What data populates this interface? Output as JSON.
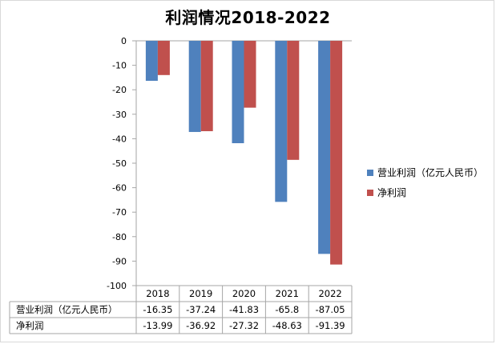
{
  "chart_data": {
    "type": "bar",
    "title": "利润情况2018-2022",
    "categories": [
      "2018",
      "2019",
      "2020",
      "2021",
      "2022"
    ],
    "series": [
      {
        "name": "营业利润（亿元人民币）",
        "color": "#4f81bd",
        "values": [
          -16.35,
          -37.24,
          -41.83,
          -65.8,
          -87.05
        ],
        "labels": [
          "-16.35",
          "-37.24",
          "-41.83",
          "-65.8",
          "-87.05"
        ]
      },
      {
        "name": "净利润",
        "color": "#c0504d",
        "values": [
          -13.99,
          -36.92,
          -27.32,
          -48.63,
          -91.39
        ],
        "labels": [
          "-13.99",
          "-36.92",
          "-27.32",
          "-48.63",
          "-91.39"
        ]
      }
    ],
    "ylim": [
      -100,
      0
    ],
    "yticks": [
      0,
      -10,
      -20,
      -30,
      -40,
      -50,
      -60,
      -70,
      -80,
      -90,
      -100
    ],
    "data_table": true,
    "legend": "right",
    "grid": false
  }
}
